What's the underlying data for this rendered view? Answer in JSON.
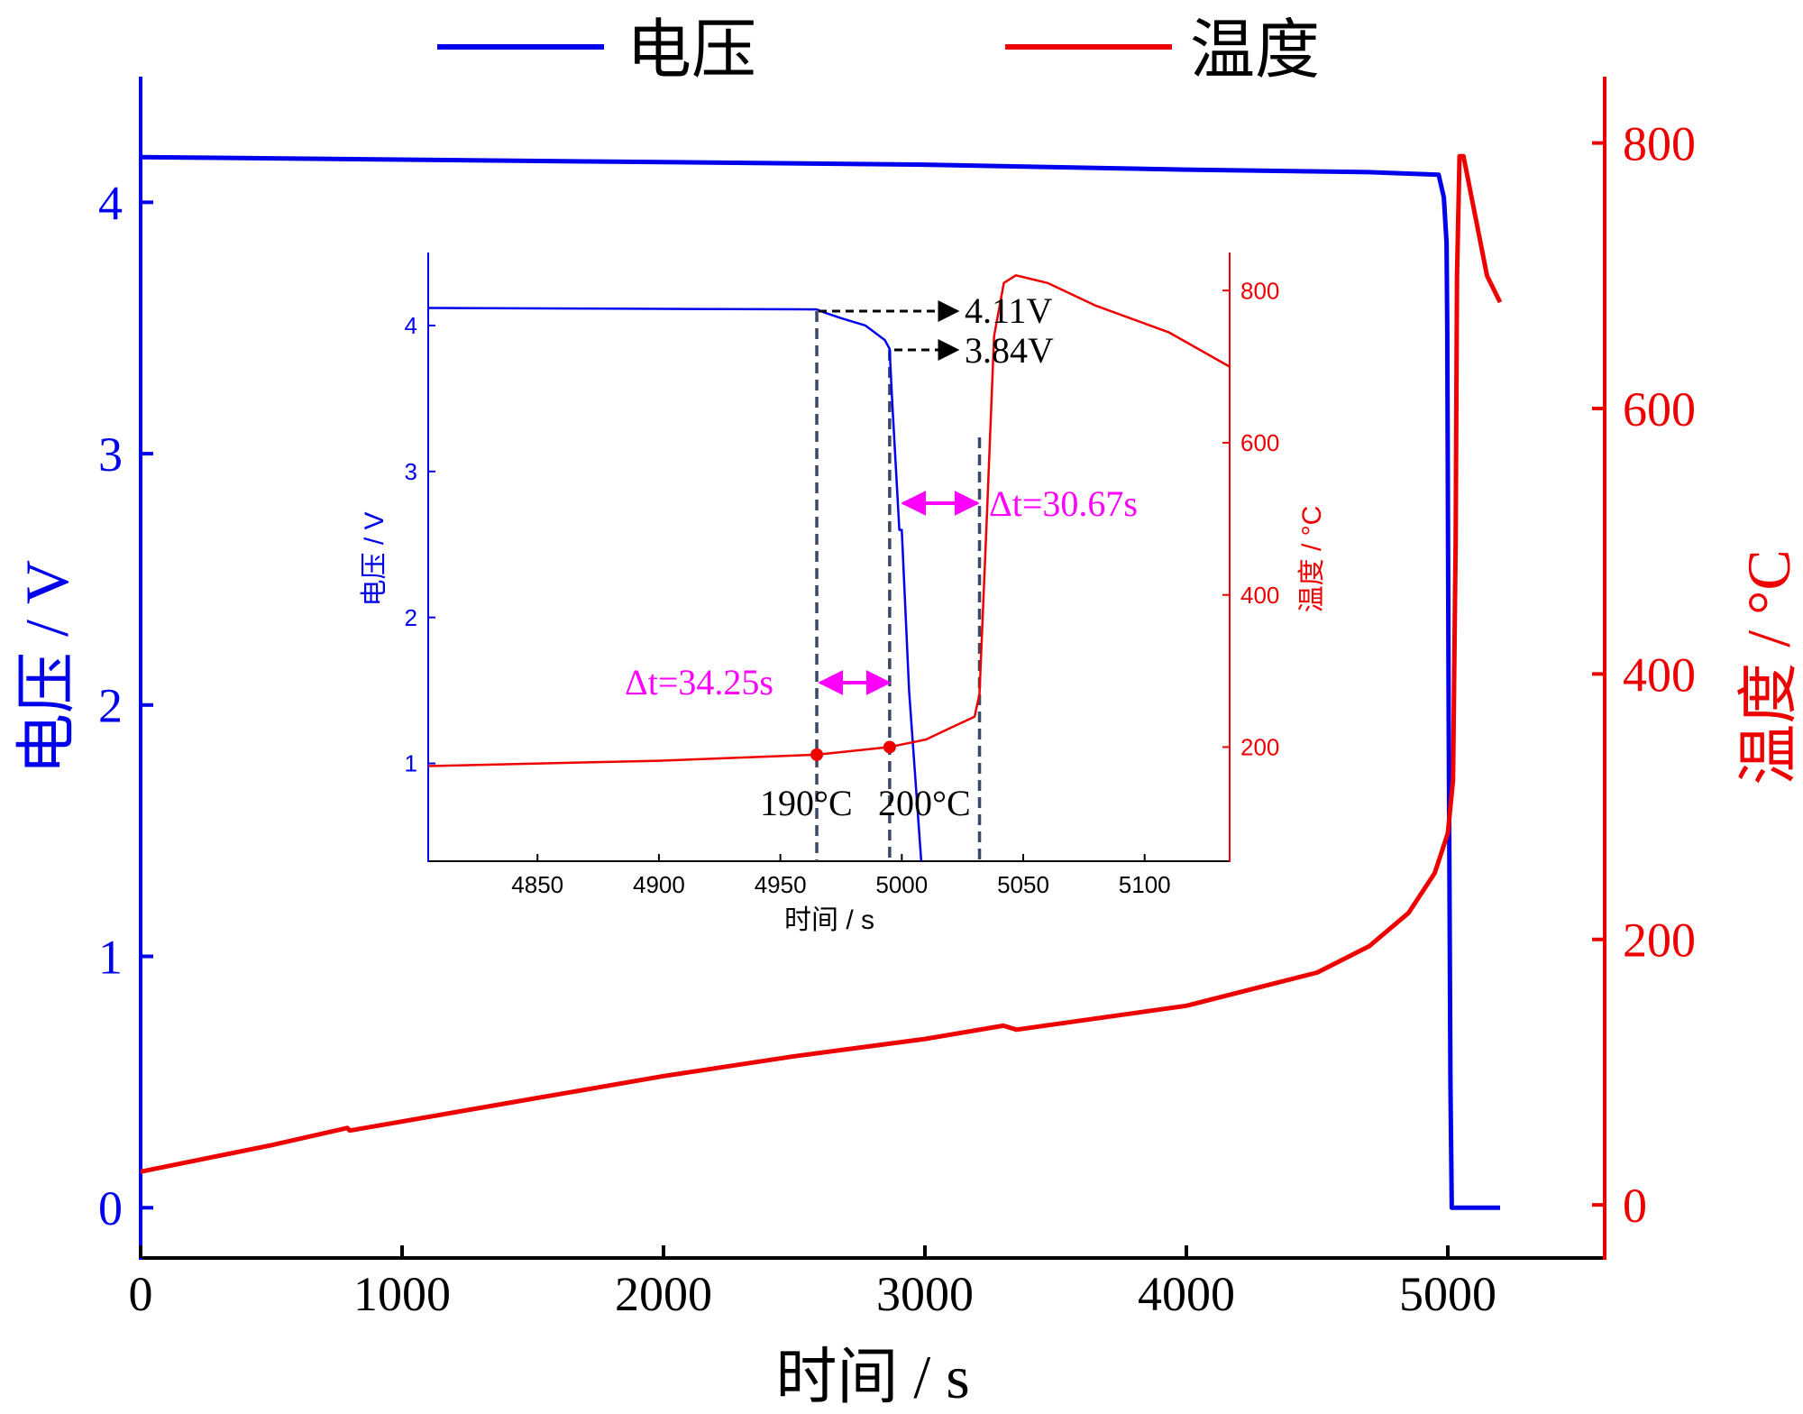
{
  "legend": {
    "items": [
      {
        "label": "电压",
        "color": "#0000ee"
      },
      {
        "label": "温度",
        "color": "#ee0000"
      }
    ],
    "position": "top-center"
  },
  "chart_data": [
    {
      "type": "line",
      "xlabel": "时间 / s",
      "ylabel_left": "电压 / V",
      "ylabel_right": "温度 / °C",
      "xlim": [
        0,
        5600
      ],
      "ylim_left": [
        -0.2,
        4.5
      ],
      "ylim_right": [
        -40,
        850
      ],
      "x_ticks": [
        "0",
        "1000",
        "2000",
        "3000",
        "4000",
        "5000"
      ],
      "y_left_ticks": [
        "0",
        "1",
        "2",
        "3",
        "4"
      ],
      "y_right_ticks": [
        "0",
        "200",
        "400",
        "600",
        "800"
      ],
      "grid": false,
      "series": [
        {
          "name": "电压",
          "axis": "left",
          "color": "#0000ee",
          "x": [
            0,
            1000,
            2000,
            3000,
            4000,
            4700,
            4965,
            4985,
            4995,
            4998,
            5003,
            5010,
            5015,
            5020,
            5200
          ],
          "y": [
            4.18,
            4.17,
            4.16,
            4.15,
            4.13,
            4.12,
            4.11,
            4.02,
            3.84,
            3.5,
            2.0,
            0.5,
            0,
            0,
            0
          ]
        },
        {
          "name": "温度",
          "axis": "right",
          "color": "#ee0000",
          "x": [
            0,
            500,
            790,
            800,
            1500,
            2000,
            2500,
            3000,
            3300,
            3350,
            4000,
            4500,
            4700,
            4850,
            4950,
            5000,
            5020,
            5030,
            5035,
            5045,
            5060,
            5100,
            5150,
            5200
          ],
          "y": [
            25,
            45,
            58,
            56,
            80,
            97,
            112,
            125,
            135,
            132,
            150,
            175,
            195,
            220,
            250,
            280,
            320,
            500,
            700,
            790,
            790,
            750,
            700,
            680
          ]
        }
      ]
    },
    {
      "type": "line",
      "inset": true,
      "xlabel": "时间 / s",
      "ylabel_left": "电压 / V",
      "ylabel_right": "温度 / °C",
      "xlim": [
        4805,
        5135
      ],
      "ylim_left": [
        0.33,
        4.5
      ],
      "ylim_right": [
        50,
        850
      ],
      "x_ticks": [
        "4850",
        "4900",
        "4950",
        "5000",
        "5050",
        "5100"
      ],
      "y_left_ticks": [
        "1",
        "2",
        "3",
        "4"
      ],
      "y_right_ticks": [
        "200",
        "400",
        "600",
        "800"
      ],
      "series": [
        {
          "name": "电压",
          "axis": "left",
          "color": "#0000ee",
          "x": [
            4805,
            4880,
            4965,
            4968,
            4975,
            4985,
            4993,
            4995,
            4996,
            4997,
            4998,
            4999,
            5000,
            5003,
            5008
          ],
          "y": [
            4.12,
            4.115,
            4.11,
            4.09,
            4.05,
            4.0,
            3.9,
            3.84,
            3.5,
            3.2,
            2.9,
            2.6,
            2.6,
            1.5,
            0.33
          ]
        },
        {
          "name": "温度",
          "axis": "right",
          "color": "#ee0000",
          "x": [
            4805,
            4900,
            4965,
            4995,
            5010,
            5020,
            5030,
            5032,
            5035,
            5038,
            5042,
            5047,
            5060,
            5080,
            5110,
            5135
          ],
          "y": [
            175,
            182,
            190,
            200,
            210,
            225,
            240,
            270,
            500,
            740,
            810,
            820,
            810,
            780,
            745,
            700
          ]
        }
      ],
      "annotations": {
        "voltage_labels": [
          "4.11V",
          "3.84V"
        ],
        "delta_labels": [
          "Δt=34.25s",
          "Δt=30.67s"
        ],
        "temp_labels": [
          "190°C",
          "200°C"
        ],
        "marker_points": [
          {
            "x": 4965,
            "y": 190
          },
          {
            "x": 4995,
            "y": 200
          }
        ],
        "vlines_x": [
          4965,
          4995,
          5032
        ],
        "arrow_color": "#ff00ff",
        "marker_color": "#ee0000"
      }
    }
  ]
}
